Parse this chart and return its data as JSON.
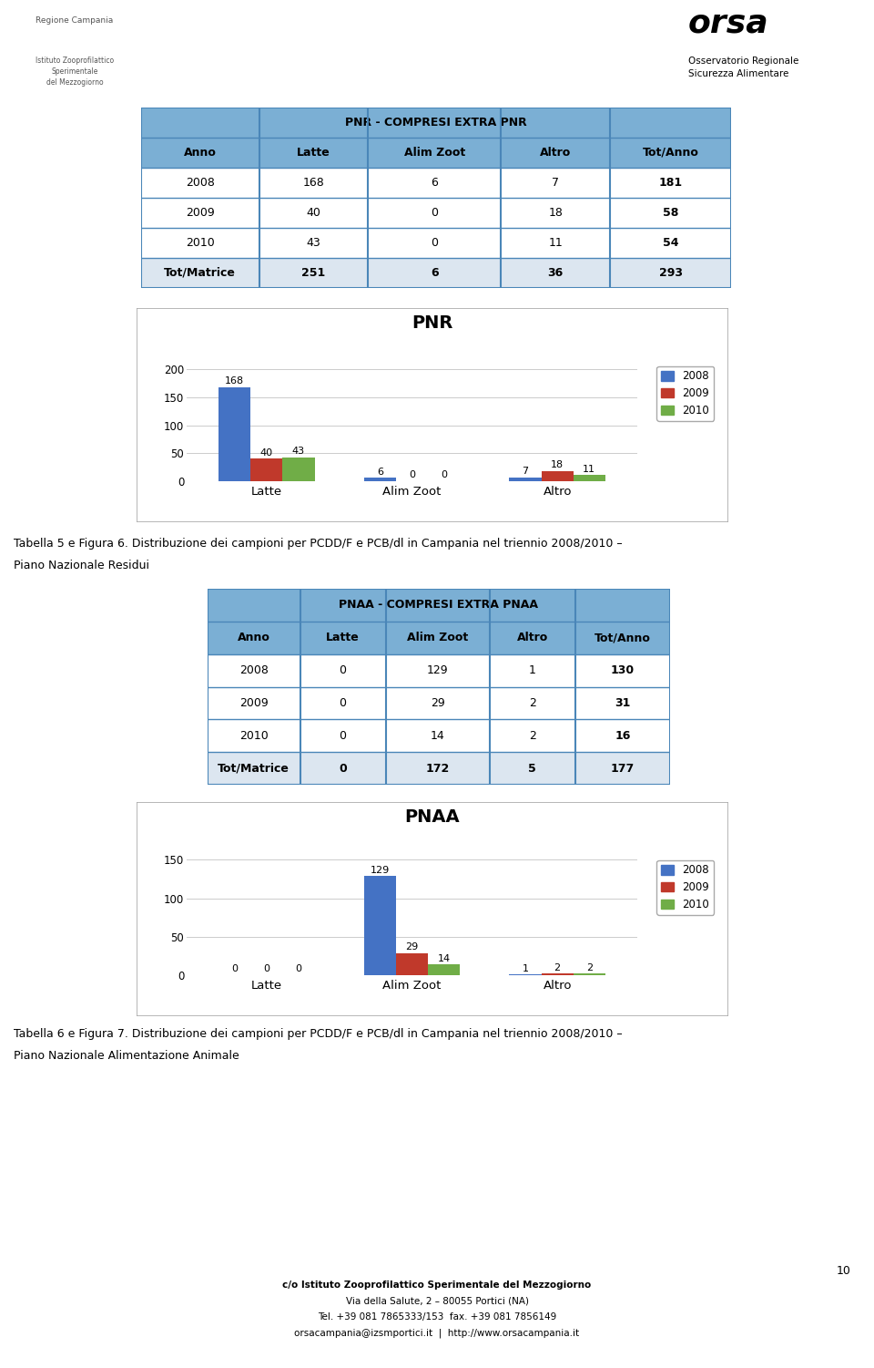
{
  "page_bg": "#ffffff",
  "table1_title": "PNR - COMPRESI EXTRA PNR",
  "table1_headers": [
    "Anno",
    "Latte",
    "Alim Zoot",
    "Altro",
    "Tot/Anno"
  ],
  "table1_rows": [
    [
      "2008",
      "168",
      "6",
      "7",
      "181"
    ],
    [
      "2009",
      "40",
      "0",
      "18",
      "58"
    ],
    [
      "2010",
      "43",
      "0",
      "11",
      "54"
    ],
    [
      "Tot/Matrice",
      "251",
      "6",
      "36",
      "293"
    ]
  ],
  "table1_header_bg": "#7bafd4",
  "table1_border": "#4a86b8",
  "chart1_title": "PNR",
  "chart1_categories": [
    "Latte",
    "Alim Zoot",
    "Altro"
  ],
  "chart1_2008": [
    168,
    6,
    7
  ],
  "chart1_2009": [
    40,
    0,
    18
  ],
  "chart1_2010": [
    43,
    0,
    11
  ],
  "chart1_color_2008": "#4472c4",
  "chart1_color_2009": "#c0392b",
  "chart1_color_2010": "#70ad47",
  "chart1_ylim": [
    0,
    220
  ],
  "chart1_yticks": [
    0,
    50,
    100,
    150,
    200
  ],
  "caption1_line1": "Tabella 5 e Figura 6. Distribuzione dei campioni per PCDD/F e PCB/dl in Campania nel triennio 2008/2010 –",
  "caption1_line2": "Piano Nazionale Residui",
  "table2_title": "PNAA - COMPRESI EXTRA PNAA",
  "table2_headers": [
    "Anno",
    "Latte",
    "Alim Zoot",
    "Altro",
    "Tot/Anno"
  ],
  "table2_rows": [
    [
      "2008",
      "0",
      "129",
      "1",
      "130"
    ],
    [
      "2009",
      "0",
      "29",
      "2",
      "31"
    ],
    [
      "2010",
      "0",
      "14",
      "2",
      "16"
    ],
    [
      "Tot/Matrice",
      "0",
      "172",
      "5",
      "177"
    ]
  ],
  "table2_header_bg": "#7bafd4",
  "table2_border": "#4a86b8",
  "chart2_title": "PNAA",
  "chart2_categories": [
    "Latte",
    "Alim Zoot",
    "Altro"
  ],
  "chart2_2008": [
    0,
    129,
    1
  ],
  "chart2_2009": [
    0,
    29,
    2
  ],
  "chart2_2010": [
    0,
    14,
    2
  ],
  "chart2_color_2008": "#4472c4",
  "chart2_color_2009": "#c0392b",
  "chart2_color_2010": "#70ad47",
  "chart2_ylim": [
    0,
    160
  ],
  "chart2_yticks": [
    0,
    50,
    100,
    150
  ],
  "caption2_line1": "Tabella 6 e Figura 7. Distribuzione dei campioni per PCDD/F e PCB/dl in Campania nel triennio 2008/2010 –",
  "caption2_line2": "Piano Nazionale Alimentazione Animale",
  "footer_page": "10",
  "footer_line1": "c/o Istituto Zooprofilattico Sperimentale del Mezzogiorno",
  "footer_line2": "Via della Salute, 2 – 80055 Portici (NA)",
  "footer_line3": "Tel. +39 081 7865333/153  fax. +39 081 7856149",
  "footer_line4": "orsacampania@izsmportici.it  |  http://www.orsacampania.it"
}
